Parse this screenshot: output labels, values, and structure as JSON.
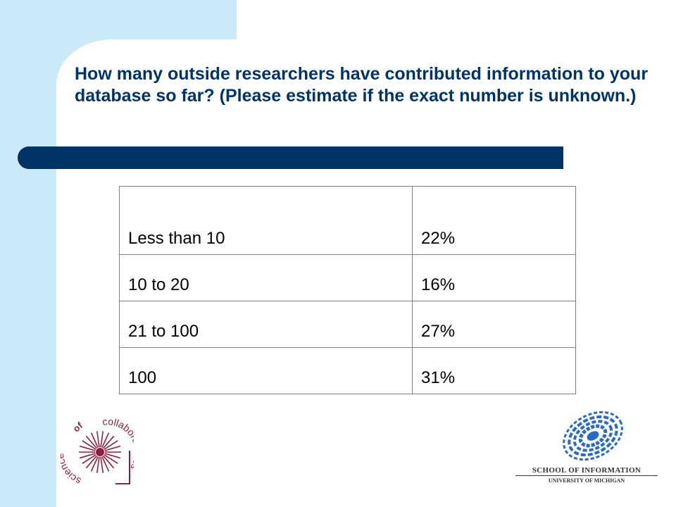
{
  "slide": {
    "title": "How many outside researchers have contributed information to your database so far? (Please estimate if the exact number is unknown.)"
  },
  "table": {
    "rows": [
      {
        "label": "Less than 10",
        "value": "22%"
      },
      {
        "label": "10 to 20",
        "value": "16%"
      },
      {
        "label": "21 to 100",
        "value": "27%"
      },
      {
        "label": "100",
        "value": "31%"
      }
    ]
  },
  "logos": {
    "science_of_collaboratories": {
      "text_science": "science",
      "text_of": "of",
      "text_collaboratories": "collaboratories"
    },
    "school": {
      "line1": "SCHOOL OF INFORMATION",
      "line2": "UNIVERSITY OF MICHIGAN"
    }
  },
  "colors": {
    "accent_light": "#cce9f9",
    "accent_dark": "#003366",
    "logo_maroon": "#8b1f3f",
    "logo_blue": "#2a6bbf"
  }
}
